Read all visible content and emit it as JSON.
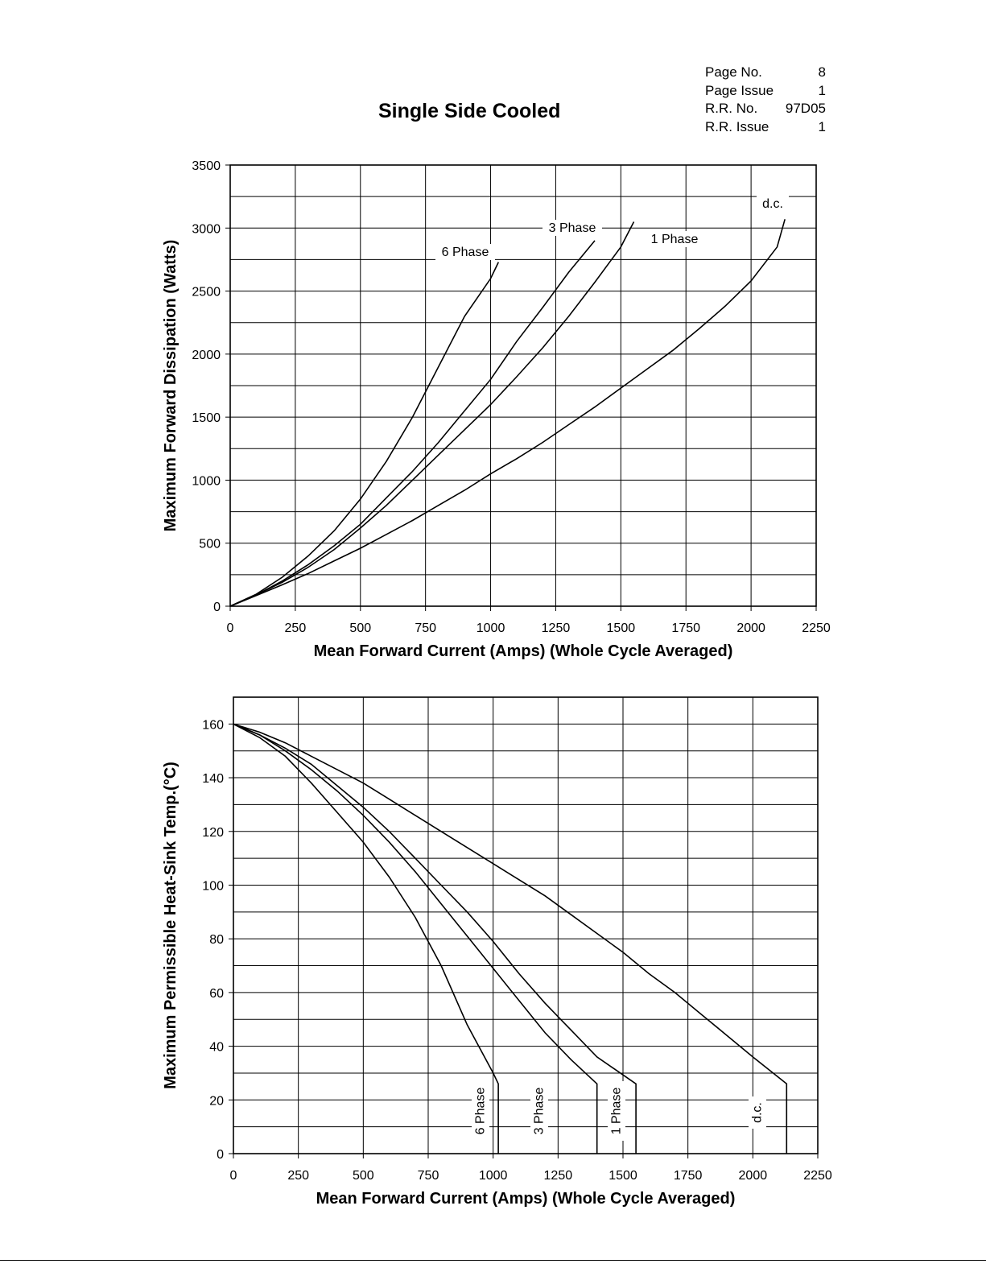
{
  "page": {
    "title": "Single Side Cooled",
    "meta": [
      {
        "label": "Page No.",
        "value": "8"
      },
      {
        "label": "Page Issue",
        "value": "1"
      },
      {
        "label": "R.R. No.",
        "value": "97D05"
      },
      {
        "label": "R.R. Issue",
        "value": "1"
      }
    ]
  },
  "chart_data": [
    {
      "type": "line",
      "title": "",
      "xlabel": "Mean Forward Current (Amps) (Whole Cycle Averaged)",
      "ylabel": "Maximum Forward Dissipation (Watts)",
      "xlim": [
        0,
        2250
      ],
      "ylim": [
        0,
        3500
      ],
      "x_ticks": [
        0,
        250,
        500,
        750,
        1000,
        1250,
        1500,
        1750,
        2000,
        2250
      ],
      "y_ticks": [
        0,
        500,
        1000,
        1500,
        2000,
        2500,
        3000,
        3500
      ],
      "grid": true,
      "series": [
        {
          "name": "6 Phase",
          "points": [
            [
              0,
              0
            ],
            [
              100,
              95
            ],
            [
              200,
              230
            ],
            [
              300,
              400
            ],
            [
              400,
              600
            ],
            [
              500,
              850
            ],
            [
              600,
              1150
            ],
            [
              700,
              1500
            ],
            [
              800,
              1900
            ],
            [
              900,
              2300
            ],
            [
              1000,
              2600
            ],
            [
              1030,
              2730
            ]
          ]
        },
        {
          "name": "3 Phase",
          "points": [
            [
              0,
              0
            ],
            [
              100,
              90
            ],
            [
              200,
              200
            ],
            [
              300,
              330
            ],
            [
              400,
              480
            ],
            [
              500,
              650
            ],
            [
              600,
              860
            ],
            [
              700,
              1070
            ],
            [
              800,
              1300
            ],
            [
              900,
              1550
            ],
            [
              1000,
              1800
            ],
            [
              1100,
              2100
            ],
            [
              1200,
              2370
            ],
            [
              1300,
              2650
            ],
            [
              1400,
              2900
            ]
          ]
        },
        {
          "name": "1 Phase",
          "points": [
            [
              0,
              0
            ],
            [
              100,
              90
            ],
            [
              200,
              190
            ],
            [
              300,
              310
            ],
            [
              400,
              450
            ],
            [
              500,
              620
            ],
            [
              600,
              800
            ],
            [
              700,
              1000
            ],
            [
              800,
              1200
            ],
            [
              900,
              1400
            ],
            [
              1000,
              1600
            ],
            [
              1100,
              1820
            ],
            [
              1200,
              2050
            ],
            [
              1300,
              2300
            ],
            [
              1400,
              2570
            ],
            [
              1500,
              2850
            ],
            [
              1550,
              3050
            ]
          ]
        },
        {
          "name": "d.c.",
          "points": [
            [
              0,
              0
            ],
            [
              100,
              85
            ],
            [
              200,
              170
            ],
            [
              300,
              260
            ],
            [
              400,
              360
            ],
            [
              500,
              460
            ],
            [
              600,
              570
            ],
            [
              700,
              680
            ],
            [
              800,
              800
            ],
            [
              900,
              920
            ],
            [
              1000,
              1050
            ],
            [
              1100,
              1170
            ],
            [
              1200,
              1300
            ],
            [
              1300,
              1440
            ],
            [
              1400,
              1580
            ],
            [
              1500,
              1730
            ],
            [
              1600,
              1880
            ],
            [
              1700,
              2030
            ],
            [
              1800,
              2200
            ],
            [
              1900,
              2380
            ],
            [
              2000,
              2580
            ],
            [
              2100,
              2850
            ],
            [
              2130,
              3070
            ]
          ]
        }
      ],
      "labels": [
        "6 Phase",
        "3 Phase",
        "1 Phase",
        "d.c."
      ]
    },
    {
      "type": "line",
      "title": "",
      "xlabel": "Mean Forward Current (Amps) (Whole Cycle Averaged)",
      "ylabel": "Maximum Permissible Heat-Sink Temp.(°C)",
      "xlim": [
        0,
        2250
      ],
      "ylim": [
        0,
        170
      ],
      "x_ticks": [
        0,
        250,
        500,
        750,
        1000,
        1250,
        1500,
        1750,
        2000,
        2250
      ],
      "y_ticks": [
        0,
        20,
        40,
        60,
        80,
        100,
        120,
        140,
        160
      ],
      "grid": true,
      "series": [
        {
          "name": "6 Phase",
          "points": [
            [
              0,
              160
            ],
            [
              100,
              155
            ],
            [
              200,
              148
            ],
            [
              300,
              138
            ],
            [
              400,
              127
            ],
            [
              500,
              116
            ],
            [
              600,
              103
            ],
            [
              700,
              88
            ],
            [
              800,
              70
            ],
            [
              900,
              48
            ],
            [
              1000,
              30
            ],
            [
              1020,
              26
            ],
            [
              1020,
              0
            ]
          ]
        },
        {
          "name": "3 Phase",
          "points": [
            [
              0,
              160
            ],
            [
              100,
              156
            ],
            [
              200,
              150
            ],
            [
              300,
              143
            ],
            [
              400,
              135
            ],
            [
              500,
              126
            ],
            [
              600,
              116
            ],
            [
              700,
              105
            ],
            [
              800,
              93
            ],
            [
              900,
              81
            ],
            [
              1000,
              69
            ],
            [
              1100,
              57
            ],
            [
              1200,
              45
            ],
            [
              1300,
              35
            ],
            [
              1400,
              26
            ],
            [
              1400,
              0
            ]
          ]
        },
        {
          "name": "1 Phase",
          "points": [
            [
              0,
              160
            ],
            [
              100,
              156
            ],
            [
              200,
              151
            ],
            [
              300,
              145
            ],
            [
              400,
              137
            ],
            [
              500,
              129
            ],
            [
              600,
              120
            ],
            [
              700,
              110
            ],
            [
              800,
              100
            ],
            [
              900,
              90
            ],
            [
              1000,
              79
            ],
            [
              1100,
              67
            ],
            [
              1200,
              56
            ],
            [
              1300,
              46
            ],
            [
              1400,
              36
            ],
            [
              1550,
              26
            ],
            [
              1550,
              0
            ]
          ]
        },
        {
          "name": "d.c.",
          "points": [
            [
              0,
              160
            ],
            [
              100,
              157
            ],
            [
              200,
              153
            ],
            [
              300,
              148
            ],
            [
              400,
              143
            ],
            [
              500,
              138
            ],
            [
              600,
              132
            ],
            [
              700,
              126
            ],
            [
              800,
              120
            ],
            [
              900,
              114
            ],
            [
              1000,
              108
            ],
            [
              1100,
              102
            ],
            [
              1200,
              96
            ],
            [
              1300,
              89
            ],
            [
              1400,
              82
            ],
            [
              1500,
              75
            ],
            [
              1600,
              67
            ],
            [
              1700,
              60
            ],
            [
              1800,
              52
            ],
            [
              1900,
              44
            ],
            [
              2000,
              36
            ],
            [
              2130,
              26
            ],
            [
              2130,
              0
            ]
          ]
        }
      ],
      "labels": [
        "6 Phase",
        "3 Phase",
        "1 Phase",
        "d.c."
      ]
    }
  ]
}
